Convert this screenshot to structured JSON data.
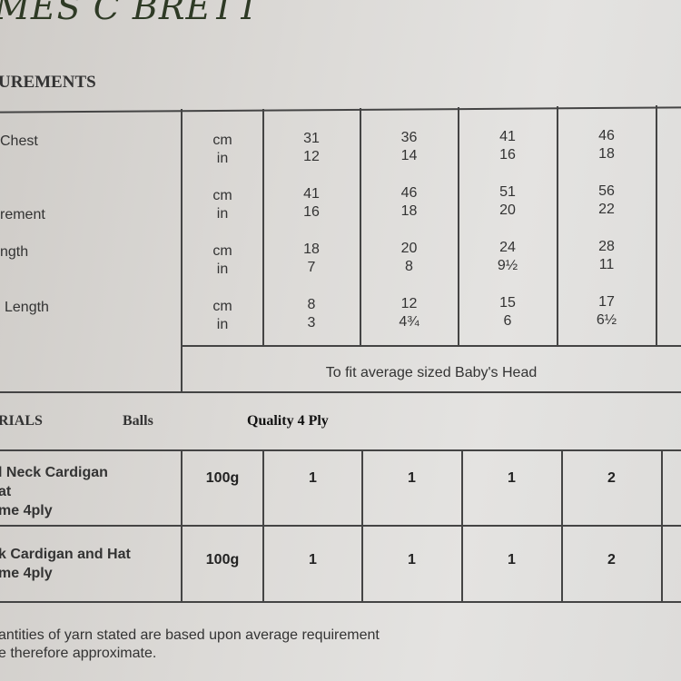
{
  "brand": "MES C BRETT",
  "measurements": {
    "heading": "UREMENTS",
    "rows": [
      {
        "label": "Chest",
        "units": [
          "cm",
          "in"
        ],
        "values": [
          [
            "31",
            "12"
          ],
          [
            "36",
            "14"
          ],
          [
            "41",
            "16"
          ],
          [
            "46",
            "18"
          ]
        ]
      },
      {
        "label": "rement",
        "units": [
          "cm",
          "in"
        ],
        "values": [
          [
            "41",
            "16"
          ],
          [
            "46",
            "18"
          ],
          [
            "51",
            "20"
          ],
          [
            "56",
            "22"
          ]
        ]
      },
      {
        "label": "ngth",
        "units": [
          "cm",
          "in"
        ],
        "values": [
          [
            "18",
            "7"
          ],
          [
            "20",
            "8"
          ],
          [
            "24",
            "9½"
          ],
          [
            "28",
            "11"
          ]
        ]
      },
      {
        "label": "Length",
        "units": [
          "cm",
          "in"
        ],
        "values": [
          [
            "8",
            "3"
          ],
          [
            "12",
            "4¾"
          ],
          [
            "15",
            "6"
          ],
          [
            "17",
            "6½"
          ]
        ]
      }
    ],
    "hat_note": "To fit average sized Baby's Head"
  },
  "materials": {
    "heading": "RIALS",
    "balls_label": "Balls",
    "quality_label": "Quality 4 Ply",
    "rows": [
      {
        "lines": [
          "l Neck Cardigan",
          "at",
          "me 4ply"
        ],
        "weight": "100g",
        "values": [
          "1",
          "1",
          "1",
          "2"
        ]
      },
      {
        "lines": [
          "k Cardigan and Hat",
          "me 4ply"
        ],
        "weight": "100g",
        "values": [
          "1",
          "1",
          "1",
          "2"
        ]
      }
    ]
  },
  "footnote": [
    "antities of yarn stated are based upon average requirement",
    "e therefore approximate."
  ]
}
